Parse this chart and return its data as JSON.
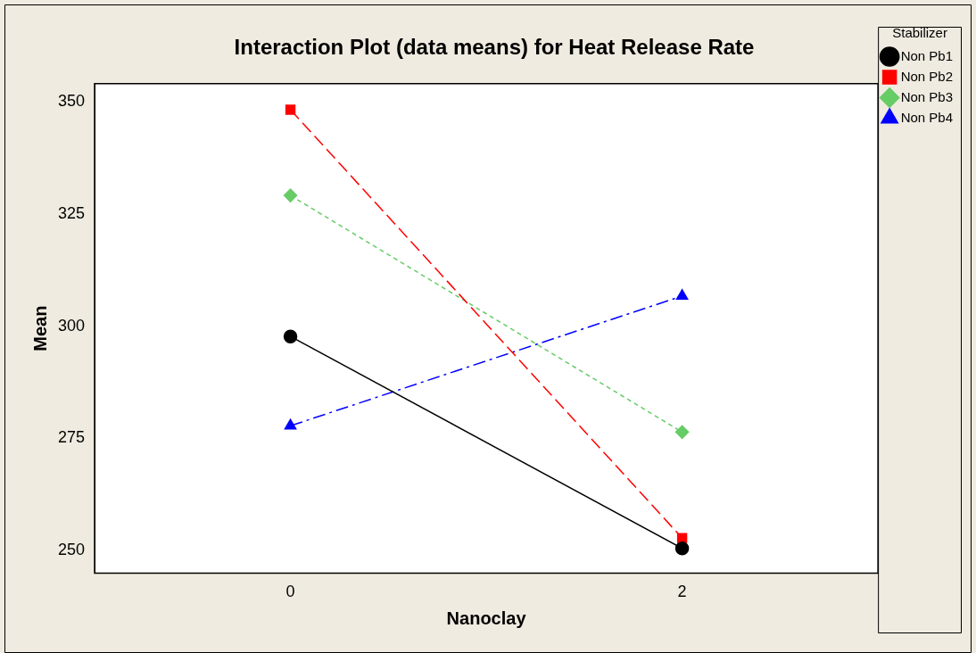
{
  "chart_data": {
    "type": "line",
    "title": "Interaction Plot (data means) for Heat Release Rate",
    "xlabel": "Nanoclay",
    "ylabel": "Mean",
    "legend_title": "Stabilizer",
    "x": [
      0,
      2
    ],
    "xlim": [
      -1,
      3
    ],
    "xticks": [
      0,
      2
    ],
    "ylim": [
      245,
      354
    ],
    "yticks": [
      250,
      275,
      300,
      325,
      350
    ],
    "grid": false,
    "legend": "top right",
    "series": [
      {
        "name": "Non Pb1",
        "color": "#000000",
        "values": [
          297.7,
          250.5
        ],
        "marker": "circle",
        "line_style": "solid"
      },
      {
        "name": "Non Pb2",
        "color": "#ff0000",
        "values": [
          348.2,
          252.8
        ],
        "marker": "square",
        "line_style": "dashed"
      },
      {
        "name": "Non Pb3",
        "color": "#66cc66",
        "values": [
          329.1,
          276.4
        ],
        "marker": "diamond",
        "line_style": "dotted"
      },
      {
        "name": "Non Pb4",
        "color": "#0000ff",
        "values": [
          277.8,
          306.7
        ],
        "marker": "triangle",
        "line_style": "dashdot"
      }
    ]
  }
}
